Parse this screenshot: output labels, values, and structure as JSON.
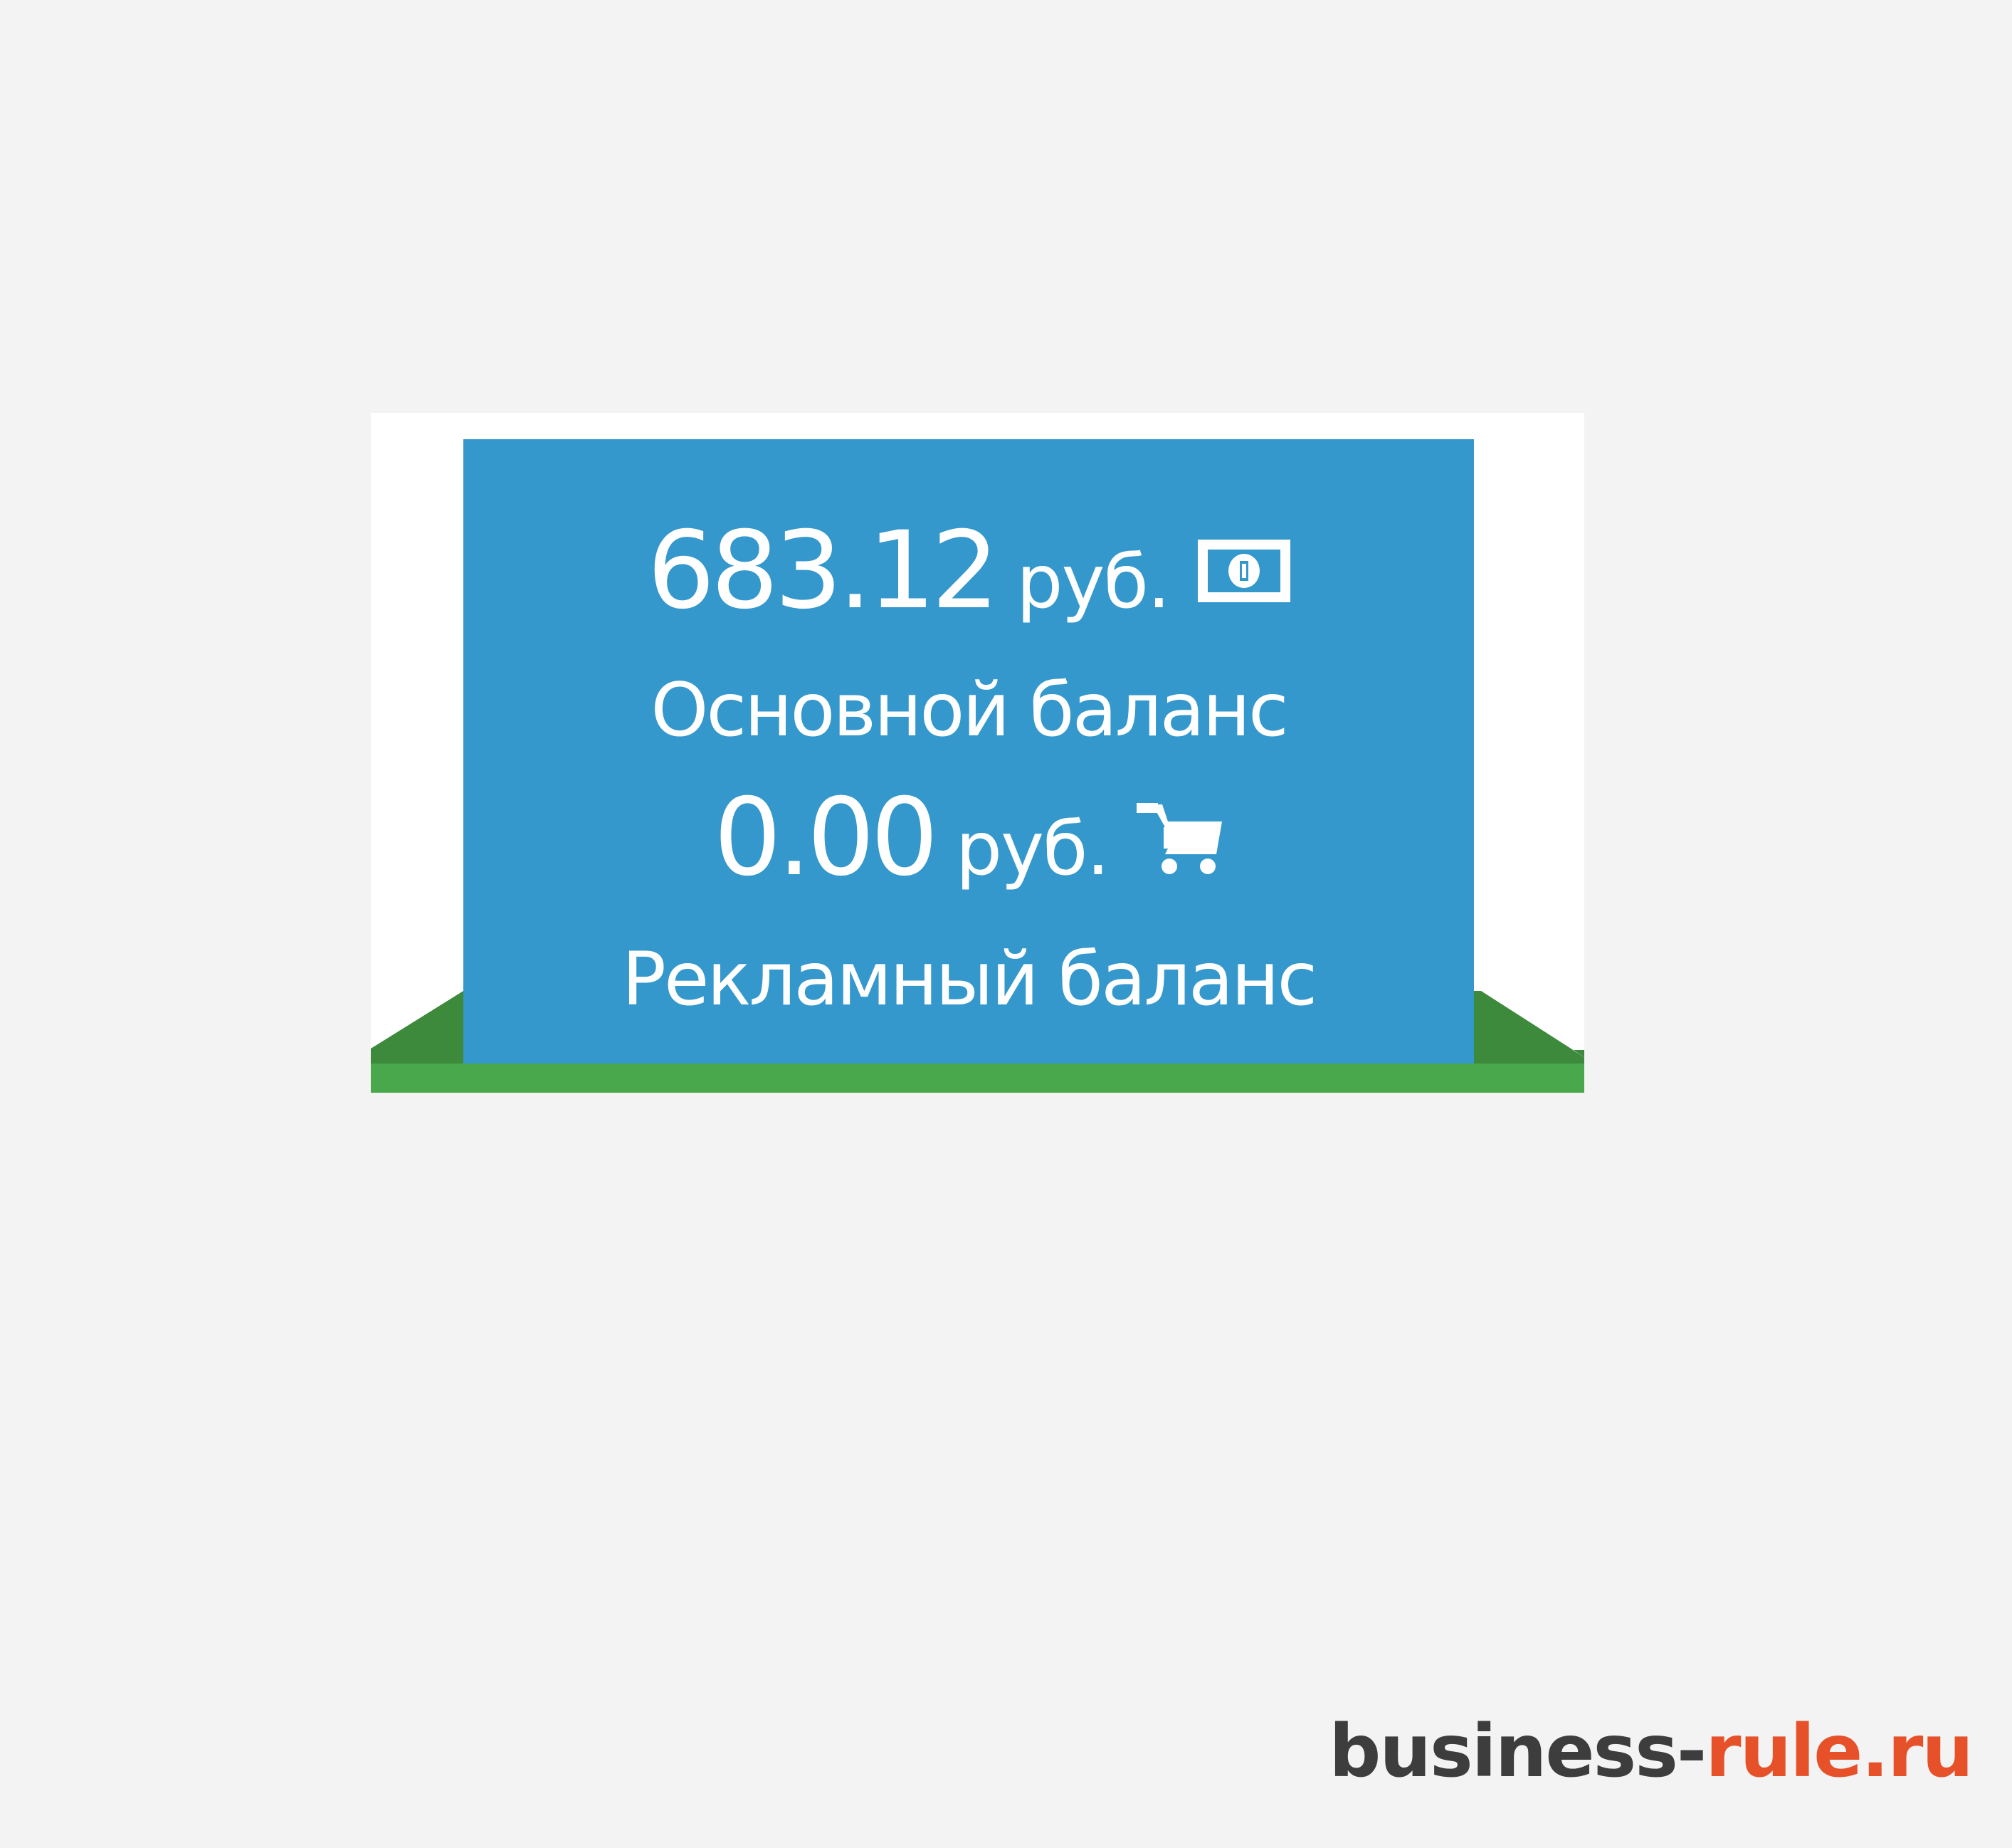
{
  "balances": {
    "main": {
      "amount": "683.12",
      "currency": "руб.",
      "label": "Основной баланс",
      "icon": "money-bill-icon"
    },
    "advertising": {
      "amount": "0.00",
      "currency": "руб.",
      "label": "Рекламный баланс",
      "icon": "shopping-cart-icon"
    }
  },
  "watermark": {
    "part1": "business-",
    "part2": "rule.ru"
  },
  "colors": {
    "page_background": "#f3f3f3",
    "panel": "#3498cc",
    "panel_text": "#ffffff",
    "button_green_dark": "#3d8a3c",
    "button_green": "#48a84b",
    "watermark_dark": "#3d3d3d",
    "watermark_accent": "#e6512a"
  }
}
